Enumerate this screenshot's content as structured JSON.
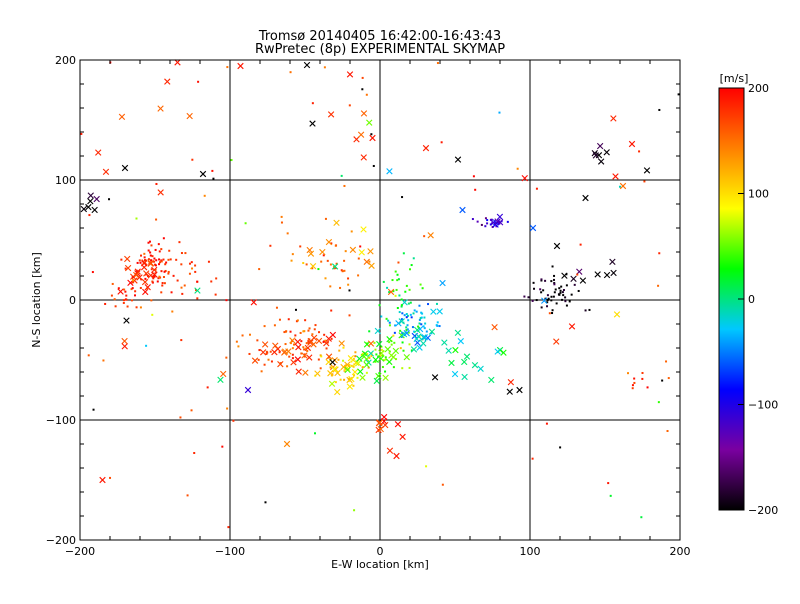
{
  "chart_data": {
    "type": "scatter",
    "title": "Tromsø 20140405 16:42:00-16:43:43",
    "subtitle": "RwPretec (8p) EXPERIMENTAL SKYMAP",
    "xlabel": "E-W location [km]",
    "ylabel": "N-S location [km]",
    "xlim": [
      -200,
      200
    ],
    "ylim": [
      -200,
      200
    ],
    "x_ticks": [
      -200,
      -100,
      0,
      100,
      200
    ],
    "y_ticks": [
      -200,
      -100,
      0,
      100,
      200
    ],
    "x_tick_labels": [
      "−200",
      "−100",
      "0",
      "100",
      "200"
    ],
    "y_tick_labels": [
      "−200",
      "−100",
      "0",
      "100",
      "200"
    ],
    "grid": true,
    "colorbar": {
      "label": "[m/s]",
      "range": [
        -200,
        200
      ],
      "ticks": [
        200,
        100,
        0,
        -100,
        -200
      ],
      "tick_labels": [
        "200",
        "100",
        "0",
        "−100",
        "−200"
      ],
      "colormap": [
        "#000000",
        "#7a00a0",
        "#0000ff",
        "#00c8ff",
        "#00ff00",
        "#ffff00",
        "#ff8000",
        "#ff0000"
      ]
    },
    "markers": {
      "small": "dot",
      "large": "cross"
    },
    "clusters": [
      {
        "cx": -150,
        "cy": 30,
        "rx": 12,
        "ry": 15,
        "v": 185,
        "n": 70,
        "m": "dot",
        "seed": 11
      },
      {
        "cx": -160,
        "cy": 25,
        "rx": 10,
        "ry": 12,
        "v": 180,
        "n": 20,
        "m": "cross",
        "seed": 12
      },
      {
        "cx": -170,
        "cy": 5,
        "rx": 18,
        "ry": 15,
        "v": 175,
        "n": 30,
        "m": "dot",
        "seed": 13
      },
      {
        "cx": -190,
        "cy": 80,
        "rx": 5,
        "ry": 8,
        "v": -200,
        "n": 6,
        "m": "cross",
        "seed": 14
      },
      {
        "cx": -130,
        "cy": 20,
        "rx": 20,
        "ry": 30,
        "v": 175,
        "n": 25,
        "m": "dot",
        "seed": 15
      },
      {
        "cx": -60,
        "cy": -35,
        "rx": 30,
        "ry": 20,
        "v": 170,
        "n": 70,
        "m": "dot",
        "seed": 16
      },
      {
        "cx": -50,
        "cy": -40,
        "rx": 25,
        "ry": 15,
        "v": 165,
        "n": 30,
        "m": "cross",
        "seed": 17
      },
      {
        "cx": -20,
        "cy": -55,
        "rx": 18,
        "ry": 12,
        "v": 110,
        "n": 40,
        "m": "dot",
        "seed": 18
      },
      {
        "cx": -25,
        "cy": -60,
        "rx": 15,
        "ry": 10,
        "v": 100,
        "n": 20,
        "m": "cross",
        "seed": 19
      },
      {
        "cx": 5,
        "cy": -45,
        "rx": 15,
        "ry": 15,
        "v": 60,
        "n": 40,
        "m": "dot",
        "seed": 20
      },
      {
        "cx": 0,
        "cy": -50,
        "rx": 18,
        "ry": 15,
        "v": 40,
        "n": 25,
        "m": "cross",
        "seed": 21
      },
      {
        "cx": 20,
        "cy": -20,
        "rx": 15,
        "ry": 12,
        "v": -40,
        "n": 45,
        "m": "dot",
        "seed": 22
      },
      {
        "cx": 30,
        "cy": -30,
        "rx": 20,
        "ry": 15,
        "v": -30,
        "n": 25,
        "m": "cross",
        "seed": 23
      },
      {
        "cx": 15,
        "cy": 10,
        "rx": 15,
        "ry": 20,
        "v": 30,
        "n": 30,
        "m": "dot",
        "seed": 24
      },
      {
        "cx": -40,
        "cy": 30,
        "rx": 30,
        "ry": 25,
        "v": 150,
        "n": 35,
        "m": "dot",
        "seed": 25
      },
      {
        "cx": -25,
        "cy": 40,
        "rx": 20,
        "ry": 20,
        "v": 130,
        "n": 12,
        "m": "cross",
        "seed": 26
      },
      {
        "cx": 75,
        "cy": 65,
        "rx": 8,
        "ry": 5,
        "v": -120,
        "n": 20,
        "m": "dot",
        "seed": 27
      },
      {
        "cx": 80,
        "cy": 65,
        "rx": 5,
        "ry": 4,
        "v": -110,
        "n": 6,
        "m": "cross",
        "seed": 28
      },
      {
        "cx": 115,
        "cy": 5,
        "rx": 15,
        "ry": 15,
        "v": -200,
        "n": 55,
        "m": "dot",
        "seed": 29
      },
      {
        "cx": 140,
        "cy": 25,
        "rx": 20,
        "ry": 15,
        "v": -200,
        "n": 8,
        "m": "cross",
        "seed": 30
      },
      {
        "cx": 150,
        "cy": 125,
        "rx": 10,
        "ry": 8,
        "v": -200,
        "n": 6,
        "m": "cross",
        "seed": 31
      },
      {
        "cx": 0,
        "cy": -100,
        "rx": 12,
        "ry": 15,
        "v": 180,
        "n": 10,
        "m": "cross",
        "seed": 32
      },
      {
        "cx": 60,
        "cy": -50,
        "rx": 20,
        "ry": 15,
        "v": 0,
        "n": 12,
        "m": "cross",
        "seed": 33
      },
      {
        "cx": 170,
        "cy": -65,
        "rx": 8,
        "ry": 15,
        "v": 180,
        "n": 8,
        "m": "dot",
        "seed": 34
      },
      {
        "cx": 0,
        "cy": 0,
        "rx": 200,
        "ry": 200,
        "v": "random",
        "n": 90,
        "m": "dot",
        "seed": 35
      },
      {
        "cx": 0,
        "cy": 60,
        "rx": 190,
        "ry": 140,
        "v": "random",
        "n": 40,
        "m": "cross",
        "seed": 36
      }
    ],
    "points": [
      {
        "x": -185,
        "y": -150,
        "v": 190,
        "m": "cross"
      },
      {
        "x": -135,
        "y": 198,
        "v": 190,
        "m": "cross"
      },
      {
        "x": -93,
        "y": 195,
        "v": 190,
        "m": "cross"
      },
      {
        "x": -20,
        "y": 188,
        "v": 190,
        "m": "cross"
      },
      {
        "x": -170,
        "y": 110,
        "v": -200,
        "m": "cross"
      },
      {
        "x": -118,
        "y": 105,
        "v": -200,
        "m": "cross"
      },
      {
        "x": -45,
        "y": 147,
        "v": -200,
        "m": "cross"
      },
      {
        "x": -5,
        "y": 135,
        "v": 190,
        "m": "cross"
      },
      {
        "x": 52,
        "y": 117,
        "v": -200,
        "m": "cross"
      },
      {
        "x": 168,
        "y": 130,
        "v": 190,
        "m": "cross"
      },
      {
        "x": 178,
        "y": 108,
        "v": -200,
        "m": "cross"
      },
      {
        "x": 157,
        "y": 103,
        "v": 190,
        "m": "cross"
      },
      {
        "x": 162,
        "y": 95,
        "v": 150,
        "m": "cross"
      },
      {
        "x": 93,
        "y": -75,
        "v": -200,
        "m": "cross"
      },
      {
        "x": -62,
        "y": -120,
        "v": 140,
        "m": "cross"
      },
      {
        "x": 11,
        "y": -130,
        "v": 190,
        "m": "cross"
      },
      {
        "x": -88,
        "y": -75,
        "v": -110,
        "m": "cross"
      },
      {
        "x": 55,
        "y": 75,
        "v": -60,
        "m": "cross"
      },
      {
        "x": 102,
        "y": 60,
        "v": -60,
        "m": "cross"
      },
      {
        "x": 118,
        "y": 45,
        "v": -200,
        "m": "cross"
      },
      {
        "x": 137,
        "y": 85,
        "v": -200,
        "m": "cross"
      },
      {
        "x": 128,
        "y": -22,
        "v": 190,
        "m": "cross"
      },
      {
        "x": 158,
        "y": -12,
        "v": 100,
        "m": "cross"
      }
    ]
  }
}
